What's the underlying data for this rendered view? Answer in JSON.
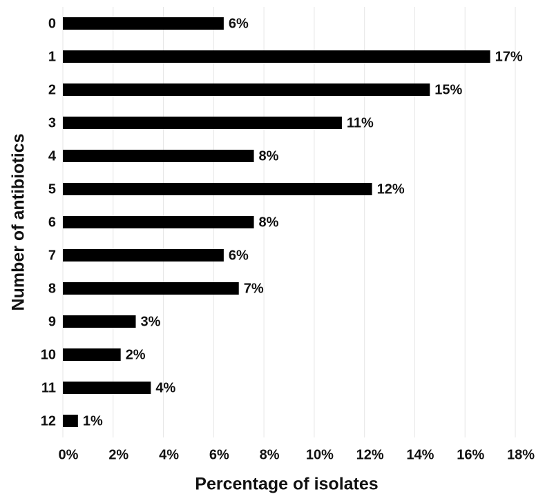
{
  "chart_data": {
    "type": "bar",
    "orientation": "horizontal",
    "x_label": "Percentage of isolates",
    "y_label": "Number of antibiotics",
    "categories": [
      "0",
      "1",
      "2",
      "3",
      "4",
      "5",
      "6",
      "7",
      "8",
      "9",
      "10",
      "11",
      "12"
    ],
    "values": [
      6.4,
      17.0,
      14.6,
      11.1,
      7.6,
      12.3,
      7.6,
      6.4,
      7.0,
      2.9,
      2.3,
      3.5,
      0.6
    ],
    "value_labels": [
      "6%",
      "17%",
      "15%",
      "11%",
      "8%",
      "12%",
      "8%",
      "6%",
      "7%",
      "3%",
      "2%",
      "4%",
      "1%"
    ],
    "color": "#000000",
    "xlim": [
      0,
      18
    ],
    "xticks": [
      {
        "value": 0,
        "label": "0%"
      },
      {
        "value": 2,
        "label": "2%"
      },
      {
        "value": 4,
        "label": "4%"
      },
      {
        "value": 6,
        "label": "6%"
      },
      {
        "value": 8,
        "label": "8%"
      },
      {
        "value": 10,
        "label": "10%"
      },
      {
        "value": 12,
        "label": "12%"
      },
      {
        "value": 14,
        "label": "14%"
      },
      {
        "value": 16,
        "label": "16%"
      },
      {
        "value": 18,
        "label": "18%"
      }
    ],
    "grid": true
  }
}
